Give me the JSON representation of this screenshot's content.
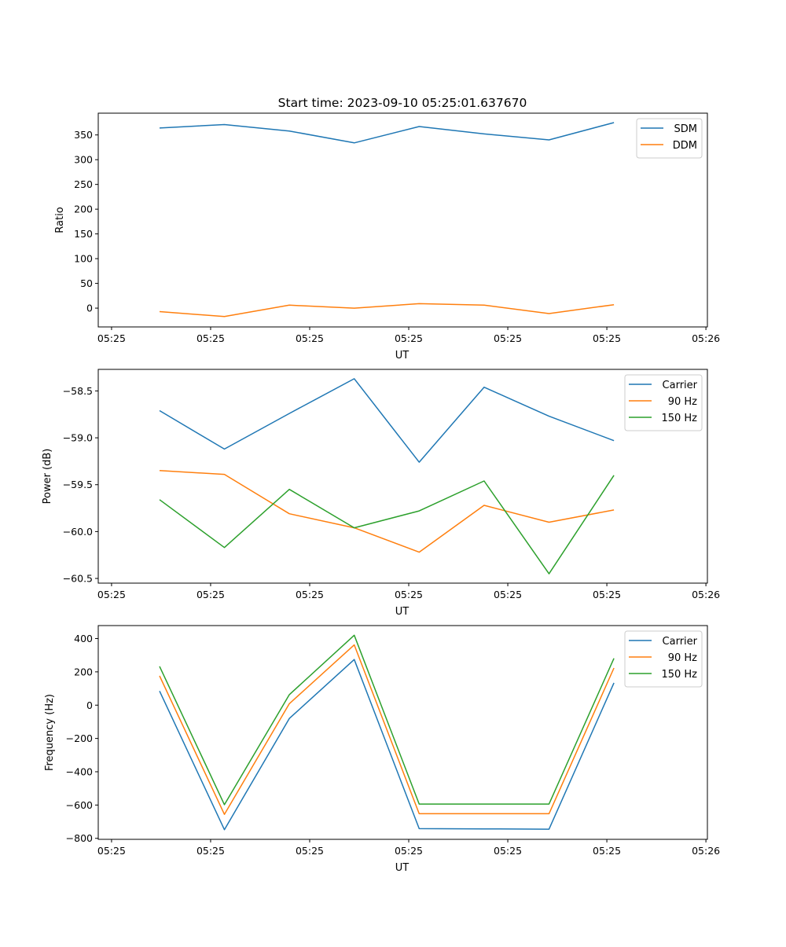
{
  "title": "Start time: 2023-09-10 05:25:01.637670",
  "chart_data": [
    {
      "type": "line",
      "title": "Start time: 2023-09-10 05:25:01.637670",
      "xlabel": "UT",
      "ylabel": "Ratio",
      "x": [
        0,
        1,
        2,
        3,
        4,
        5,
        6,
        7
      ],
      "xlim": [
        -0.944,
        8.44
      ],
      "xticks": [
        -0.739,
        0.787,
        2.313,
        3.839,
        5.365,
        6.891,
        8.417
      ],
      "xticklabels": [
        "05:25",
        "05:25",
        "05:25",
        "05:25",
        "05:25",
        "05:25",
        "05:26"
      ],
      "ylim": [
        -38,
        394
      ],
      "yticks": [
        0,
        50,
        100,
        150,
        200,
        250,
        300,
        350
      ],
      "yticklabels": [
        "0",
        "50",
        "100",
        "150",
        "200",
        "250",
        "300",
        "350"
      ],
      "legend": "top-right",
      "series": [
        {
          "name": "SDM",
          "color": "#1f77b4",
          "values": [
            364,
            371,
            358,
            334,
            367,
            352,
            340,
            375
          ]
        },
        {
          "name": "DDM",
          "color": "#ff7f0e",
          "values": [
            -7,
            -17,
            6,
            0,
            9,
            6,
            -11,
            7
          ]
        }
      ]
    },
    {
      "type": "line",
      "xlabel": "UT",
      "ylabel": "Power (dB)",
      "x": [
        0,
        1,
        2,
        3,
        4,
        5,
        6,
        7
      ],
      "xlim": [
        -0.944,
        8.44
      ],
      "xticks": [
        -0.739,
        0.787,
        2.313,
        3.839,
        5.365,
        6.891,
        8.417
      ],
      "xticklabels": [
        "05:25",
        "05:25",
        "05:25",
        "05:25",
        "05:25",
        "05:25",
        "05:26"
      ],
      "ylim": [
        -60.55,
        -58.27
      ],
      "yticks": [
        -60.5,
        -60.0,
        -59.5,
        -59.0,
        -58.5
      ],
      "yticklabels": [
        "−60.5",
        "−60.0",
        "−59.5",
        "−59.0",
        "−58.5"
      ],
      "legend": "top-right",
      "series": [
        {
          "name": "Carrier",
          "color": "#1f77b4",
          "values": [
            -58.71,
            -59.12,
            -58.74,
            -58.37,
            -59.26,
            -58.46,
            -58.77,
            -59.03
          ]
        },
        {
          "name": "90 Hz",
          "color": "#ff7f0e",
          "values": [
            -59.35,
            -59.39,
            -59.81,
            -59.96,
            -60.22,
            -59.72,
            -59.9,
            -59.77
          ]
        },
        {
          "name": "150 Hz",
          "color": "#2ca02c",
          "values": [
            -59.66,
            -60.17,
            -59.55,
            -59.96,
            -59.78,
            -59.46,
            -60.45,
            -59.4
          ]
        }
      ]
    },
    {
      "type": "line",
      "xlabel": "UT",
      "ylabel": "Frequency (Hz)",
      "x": [
        0,
        1,
        2,
        3,
        4,
        5,
        6,
        7
      ],
      "xlim": [
        -0.944,
        8.44
      ],
      "xticks": [
        -0.739,
        0.787,
        2.313,
        3.839,
        5.365,
        6.891,
        8.417
      ],
      "xticklabels": [
        "05:25",
        "05:25",
        "05:25",
        "05:25",
        "05:25",
        "05:25",
        "05:26"
      ],
      "ylim": [
        -806,
        478
      ],
      "yticks": [
        -800,
        -600,
        -400,
        -200,
        0,
        200,
        400
      ],
      "yticklabels": [
        "−800",
        "−600",
        "−400",
        "−200",
        "0",
        "200",
        "400"
      ],
      "legend": "top-right",
      "series": [
        {
          "name": "Carrier",
          "color": "#1f77b4",
          "values": [
            85,
            -748,
            -80,
            274,
            -742,
            -743,
            -745,
            134
          ]
        },
        {
          "name": "90 Hz",
          "color": "#ff7f0e",
          "values": [
            176,
            -656,
            9,
            362,
            -652,
            -652,
            -652,
            223
          ]
        },
        {
          "name": "150 Hz",
          "color": "#2ca02c",
          "values": [
            233,
            -598,
            63,
            420,
            -594,
            -594,
            -594,
            281
          ]
        }
      ]
    }
  ]
}
